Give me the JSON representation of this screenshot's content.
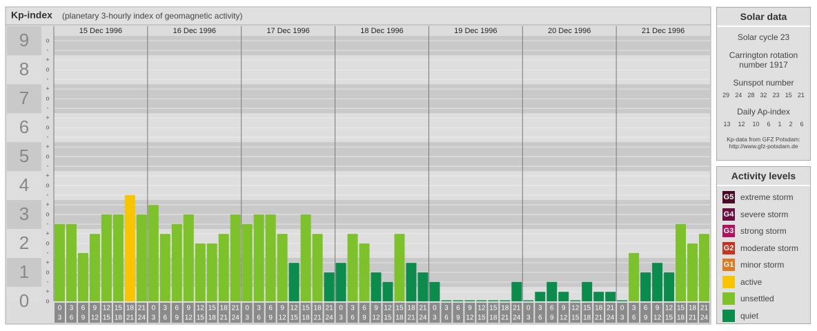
{
  "header": {
    "title": "Kp-index",
    "subtitle": "(planetary 3-hourly index of geomagnetic activity)"
  },
  "chart_data": {
    "type": "bar",
    "categories": [
      "15 Dec 1996",
      "16 Dec 1996",
      "17 Dec 1996",
      "18 Dec 1996",
      "19 Dec 1996",
      "20 Dec 1996",
      "21 Dec 1996"
    ],
    "time_slots": [
      [
        "0",
        "3"
      ],
      [
        "3",
        "6"
      ],
      [
        "6",
        "9"
      ],
      [
        "9",
        "12"
      ],
      [
        "12",
        "15"
      ],
      [
        "15",
        "18"
      ],
      [
        "18",
        "21"
      ],
      [
        "21",
        "24"
      ]
    ],
    "values": [
      [
        2.67,
        2.67,
        1.67,
        2.33,
        3,
        3,
        3.67,
        3
      ],
      [
        3.33,
        2.33,
        2.67,
        3,
        2,
        2,
        2.33,
        3
      ],
      [
        2.67,
        3,
        3,
        2.33,
        1.33,
        3,
        2.33,
        1
      ],
      [
        1.33,
        2.33,
        2,
        1,
        0.67,
        2.33,
        1.33,
        1
      ],
      [
        0.67,
        0,
        0,
        0,
        0,
        0,
        0,
        0.67
      ],
      [
        0,
        0.33,
        0.67,
        0.33,
        0,
        0.67,
        0.33,
        0.33
      ],
      [
        0,
        1.67,
        1,
        1.33,
        1,
        2.67,
        2,
        2.33
      ]
    ],
    "colors": [
      [
        "#7dc12b",
        "#7dc12b",
        "#7dc12b",
        "#7dc12b",
        "#7dc12b",
        "#7dc12b",
        "#f7c600",
        "#7dc12b"
      ],
      [
        "#7dc12b",
        "#7dc12b",
        "#7dc12b",
        "#7dc12b",
        "#7dc12b",
        "#7dc12b",
        "#7dc12b",
        "#7dc12b"
      ],
      [
        "#7dc12b",
        "#7dc12b",
        "#7dc12b",
        "#7dc12b",
        "#0b8c4c",
        "#7dc12b",
        "#7dc12b",
        "#0b8c4c"
      ],
      [
        "#0b8c4c",
        "#7dc12b",
        "#7dc12b",
        "#0b8c4c",
        "#0b8c4c",
        "#7dc12b",
        "#0b8c4c",
        "#0b8c4c"
      ],
      [
        "#0b8c4c",
        "#0b8c4c",
        "#0b8c4c",
        "#0b8c4c",
        "#0b8c4c",
        "#0b8c4c",
        "#0b8c4c",
        "#0b8c4c"
      ],
      [
        "#0b8c4c",
        "#0b8c4c",
        "#0b8c4c",
        "#0b8c4c",
        "#0b8c4c",
        "#0b8c4c",
        "#0b8c4c",
        "#0b8c4c"
      ],
      [
        "#0b8c4c",
        "#7dc12b",
        "#0b8c4c",
        "#0b8c4c",
        "#0b8c4c",
        "#7dc12b",
        "#7dc12b",
        "#7dc12b"
      ]
    ],
    "ylim": [
      0,
      9.17
    ],
    "yticks": [
      0,
      1,
      2,
      3,
      4,
      5,
      6,
      7,
      8,
      9
    ],
    "minor_ticks": [
      {
        "value": 0,
        "label": "o"
      },
      {
        "value": 0.333,
        "label": "+"
      },
      {
        "value": 0.667,
        "label": "-"
      },
      {
        "value": 1,
        "label": "o"
      },
      {
        "value": 1.333,
        "label": "+"
      },
      {
        "value": 1.667,
        "label": "-"
      },
      {
        "value": 2,
        "label": "o"
      },
      {
        "value": 2.333,
        "label": "+"
      },
      {
        "value": 2.667,
        "label": "-"
      },
      {
        "value": 3,
        "label": "o"
      },
      {
        "value": 3.333,
        "label": "+"
      },
      {
        "value": 3.667,
        "label": "-"
      },
      {
        "value": 4,
        "label": "o"
      },
      {
        "value": 4.333,
        "label": "+"
      },
      {
        "value": 4.667,
        "label": "-"
      },
      {
        "value": 5,
        "label": "o"
      },
      {
        "value": 5.333,
        "label": "+"
      },
      {
        "value": 5.667,
        "label": "-"
      },
      {
        "value": 6,
        "label": "o"
      },
      {
        "value": 6.333,
        "label": "+"
      },
      {
        "value": 6.667,
        "label": "-"
      },
      {
        "value": 7,
        "label": "o"
      },
      {
        "value": 7.333,
        "label": "+"
      },
      {
        "value": 7.667,
        "label": "-"
      },
      {
        "value": 8,
        "label": "o"
      },
      {
        "value": 8.333,
        "label": "+"
      },
      {
        "value": 8.667,
        "label": "-"
      },
      {
        "value": 9,
        "label": "o"
      }
    ]
  },
  "solar_data": {
    "title": "Solar data",
    "cycle": "Solar cycle 23",
    "rotation": "Carrington rotation number 1917",
    "sunspot_title": "Sunspot number",
    "sunspots": [
      29,
      24,
      28,
      32,
      23,
      15,
      21
    ],
    "ap_title": "Daily Ap-index",
    "ap": [
      13,
      12,
      10,
      6,
      1,
      2,
      6
    ],
    "source": "Kp-data from GFZ Potsdam:",
    "source_url": "http://www.gfz-potsdam.de"
  },
  "activity_levels": {
    "title": "Activity levels",
    "items": [
      {
        "badge": "G5",
        "label": "extreme storm",
        "color": "#4a0a22"
      },
      {
        "badge": "G4",
        "label": "severe storm",
        "color": "#6e0c40"
      },
      {
        "badge": "G3",
        "label": "strong storm",
        "color": "#b0135e"
      },
      {
        "badge": "G2",
        "label": "moderate storm",
        "color": "#c8321e"
      },
      {
        "badge": "G1",
        "label": "minor storm",
        "color": "#e07a1e"
      },
      {
        "badge": null,
        "label": "active",
        "color": "#f7c600"
      },
      {
        "badge": null,
        "label": "unsettled",
        "color": "#7dc12b"
      },
      {
        "badge": null,
        "label": "quiet",
        "color": "#0b8c4c"
      }
    ]
  }
}
